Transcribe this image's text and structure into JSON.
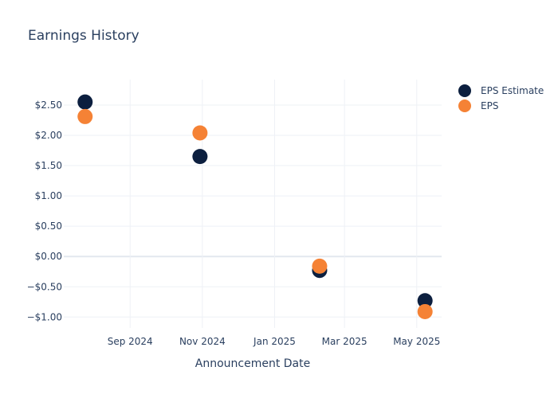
{
  "chart_data": {
    "type": "scatter",
    "title": "Earnings History",
    "xlabel": "Announcement Date",
    "ylabel": "",
    "x_ticks": [
      {
        "date": "2024-09-01",
        "label": "Sep 2024"
      },
      {
        "date": "2024-11-01",
        "label": "Nov 2024"
      },
      {
        "date": "2025-01-01",
        "label": "Jan 2025"
      },
      {
        "date": "2025-03-01",
        "label": "Mar 2025"
      },
      {
        "date": "2025-05-01",
        "label": "May 2025"
      }
    ],
    "y_ticks": [
      {
        "value": 2.5,
        "label": "$2.50"
      },
      {
        "value": 2.0,
        "label": "$2.00"
      },
      {
        "value": 1.5,
        "label": "$1.50"
      },
      {
        "value": 1.0,
        "label": "$1.00"
      },
      {
        "value": 0.5,
        "label": "$0.50"
      },
      {
        "value": 0.0,
        "label": "$0.00"
      },
      {
        "value": -0.5,
        "label": "−$0.50"
      },
      {
        "value": -1.0,
        "label": "−$1.00"
      }
    ],
    "xlim": [
      "2024-07-07",
      "2025-05-22"
    ],
    "ylim": [
      -1.18,
      2.92
    ],
    "grid": true,
    "legend_position": "top-right",
    "series": [
      {
        "name": "EPS Estimate",
        "color": "#0c1f3f",
        "points": [
          {
            "x": "2024-07-25",
            "y": 2.55
          },
          {
            "x": "2024-10-30",
            "y": 1.65
          },
          {
            "x": "2025-02-08",
            "y": -0.23
          },
          {
            "x": "2025-05-08",
            "y": -0.73
          }
        ]
      },
      {
        "name": "EPS",
        "color": "#f58235",
        "points": [
          {
            "x": "2024-07-25",
            "y": 2.31
          },
          {
            "x": "2024-10-30",
            "y": 2.04
          },
          {
            "x": "2025-02-08",
            "y": -0.16
          },
          {
            "x": "2025-05-08",
            "y": -0.91
          }
        ]
      }
    ]
  }
}
